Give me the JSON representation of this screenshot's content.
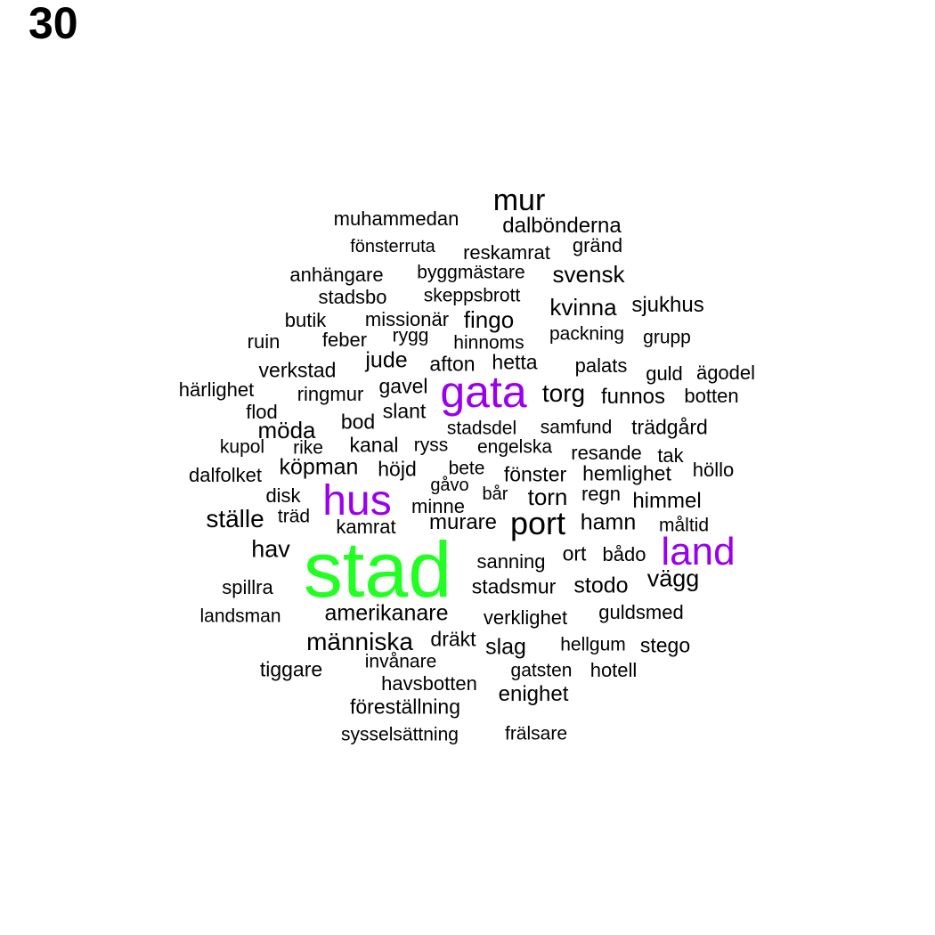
{
  "panel_label": "30",
  "colors": {
    "green": "#22ff22",
    "purple": "#9900ee",
    "black": "#000000"
  },
  "words": [
    {
      "text": "stad",
      "color": "green"
    },
    {
      "text": "gata",
      "color": "purple"
    },
    {
      "text": "hus",
      "color": "purple"
    },
    {
      "text": "land",
      "color": "purple"
    },
    {
      "text": "port",
      "color": "black"
    },
    {
      "text": "mur",
      "color": "black"
    },
    {
      "text": "muhammedan",
      "color": "black"
    },
    {
      "text": "dalbönderna",
      "color": "black"
    },
    {
      "text": "fönsterruta",
      "color": "black"
    },
    {
      "text": "reskamrat",
      "color": "black"
    },
    {
      "text": "gränd",
      "color": "black"
    },
    {
      "text": "anhängare",
      "color": "black"
    },
    {
      "text": "byggmästare",
      "color": "black"
    },
    {
      "text": "svensk",
      "color": "black"
    },
    {
      "text": "stadsbo",
      "color": "black"
    },
    {
      "text": "skeppsbrott",
      "color": "black"
    },
    {
      "text": "kvinna",
      "color": "black"
    },
    {
      "text": "sjukhus",
      "color": "black"
    },
    {
      "text": "butik",
      "color": "black"
    },
    {
      "text": "missionär",
      "color": "black"
    },
    {
      "text": "fingo",
      "color": "black"
    },
    {
      "text": "ruin",
      "color": "black"
    },
    {
      "text": "feber",
      "color": "black"
    },
    {
      "text": "rygg",
      "color": "black"
    },
    {
      "text": "hinnoms",
      "color": "black"
    },
    {
      "text": "packning",
      "color": "black"
    },
    {
      "text": "grupp",
      "color": "black"
    },
    {
      "text": "verkstad",
      "color": "black"
    },
    {
      "text": "jude",
      "color": "black"
    },
    {
      "text": "afton",
      "color": "black"
    },
    {
      "text": "hetta",
      "color": "black"
    },
    {
      "text": "palats",
      "color": "black"
    },
    {
      "text": "guld",
      "color": "black"
    },
    {
      "text": "ägodel",
      "color": "black"
    },
    {
      "text": "härlighet",
      "color": "black"
    },
    {
      "text": "ringmur",
      "color": "black"
    },
    {
      "text": "gavel",
      "color": "black"
    },
    {
      "text": "torg",
      "color": "black"
    },
    {
      "text": "funnos",
      "color": "black"
    },
    {
      "text": "botten",
      "color": "black"
    },
    {
      "text": "flod",
      "color": "black"
    },
    {
      "text": "slant",
      "color": "black"
    },
    {
      "text": "bod",
      "color": "black"
    },
    {
      "text": "möda",
      "color": "black"
    },
    {
      "text": "stadsdel",
      "color": "black"
    },
    {
      "text": "samfund",
      "color": "black"
    },
    {
      "text": "trädgård",
      "color": "black"
    },
    {
      "text": "kupol",
      "color": "black"
    },
    {
      "text": "rike",
      "color": "black"
    },
    {
      "text": "kanal",
      "color": "black"
    },
    {
      "text": "ryss",
      "color": "black"
    },
    {
      "text": "engelska",
      "color": "black"
    },
    {
      "text": "resande",
      "color": "black"
    },
    {
      "text": "tak",
      "color": "black"
    },
    {
      "text": "dalfolket",
      "color": "black"
    },
    {
      "text": "köpman",
      "color": "black"
    },
    {
      "text": "höjd",
      "color": "black"
    },
    {
      "text": "bete",
      "color": "black"
    },
    {
      "text": "fönster",
      "color": "black"
    },
    {
      "text": "hemlighet",
      "color": "black"
    },
    {
      "text": "höllo",
      "color": "black"
    },
    {
      "text": "disk",
      "color": "black"
    },
    {
      "text": "gåvo",
      "color": "black"
    },
    {
      "text": "bår",
      "color": "black"
    },
    {
      "text": "torn",
      "color": "black"
    },
    {
      "text": "regn",
      "color": "black"
    },
    {
      "text": "himmel",
      "color": "black"
    },
    {
      "text": "ställe",
      "color": "black"
    },
    {
      "text": "träd",
      "color": "black"
    },
    {
      "text": "minne",
      "color": "black"
    },
    {
      "text": "kamrat",
      "color": "black"
    },
    {
      "text": "murare",
      "color": "black"
    },
    {
      "text": "hamn",
      "color": "black"
    },
    {
      "text": "måltid",
      "color": "black"
    },
    {
      "text": "hav",
      "color": "black"
    },
    {
      "text": "sanning",
      "color": "black"
    },
    {
      "text": "ort",
      "color": "black"
    },
    {
      "text": "bådo",
      "color": "black"
    },
    {
      "text": "vägg",
      "color": "black"
    },
    {
      "text": "spillra",
      "color": "black"
    },
    {
      "text": "stadsmur",
      "color": "black"
    },
    {
      "text": "stodo",
      "color": "black"
    },
    {
      "text": "landsman",
      "color": "black"
    },
    {
      "text": "amerikanare",
      "color": "black"
    },
    {
      "text": "verklighet",
      "color": "black"
    },
    {
      "text": "guldsmed",
      "color": "black"
    },
    {
      "text": "människa",
      "color": "black"
    },
    {
      "text": "dräkt",
      "color": "black"
    },
    {
      "text": "slag",
      "color": "black"
    },
    {
      "text": "hellgum",
      "color": "black"
    },
    {
      "text": "stego",
      "color": "black"
    },
    {
      "text": "tiggare",
      "color": "black"
    },
    {
      "text": "invånare",
      "color": "black"
    },
    {
      "text": "gatsten",
      "color": "black"
    },
    {
      "text": "hotell",
      "color": "black"
    },
    {
      "text": "havsbotten",
      "color": "black"
    },
    {
      "text": "enighet",
      "color": "black"
    },
    {
      "text": "föreställning",
      "color": "black"
    },
    {
      "text": "sysselsättning",
      "color": "black"
    },
    {
      "text": "frälsare",
      "color": "black"
    }
  ]
}
